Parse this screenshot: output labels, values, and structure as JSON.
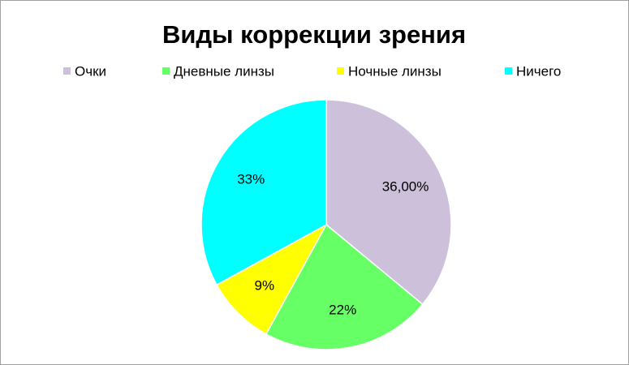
{
  "chart_data": {
    "type": "pie",
    "title": "Виды коррекции зрения",
    "categories": [
      "Очки",
      "Дневные линзы",
      "Ночные линзы",
      "Ничего"
    ],
    "values": [
      36,
      22,
      9,
      33
    ],
    "value_labels": [
      "36,00%",
      "22%",
      "9%",
      "33%"
    ],
    "colors": [
      "#ccc0da",
      "#66ff66",
      "#ffff00",
      "#00ffff"
    ],
    "legend": "top"
  }
}
